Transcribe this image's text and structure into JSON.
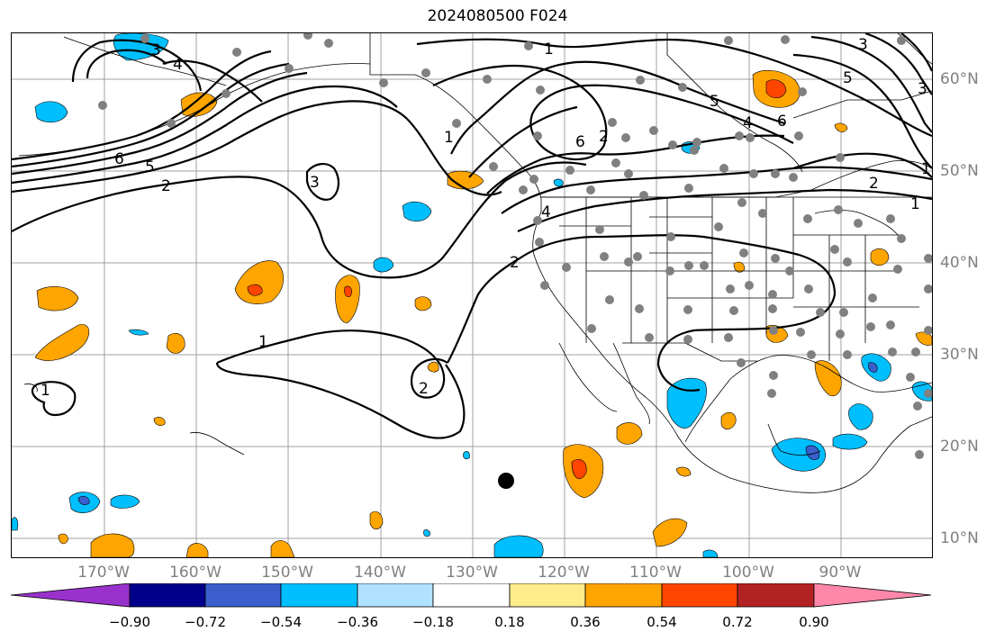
{
  "title": "2024080500 F024",
  "lon_labels": [
    "170°W",
    "160°W",
    "150°W",
    "140°W",
    "130°W",
    "120°W",
    "110°W",
    "100°W",
    "90°W"
  ],
  "lat_labels": [
    "60°N",
    "50°N",
    "40°N",
    "30°N",
    "20°N",
    "10°N"
  ],
  "colorbar": {
    "ticks": [
      "−0.90",
      "−0.72",
      "−0.54",
      "−0.36",
      "−0.18",
      "0.18",
      "0.36",
      "0.54",
      "0.72",
      "0.90"
    ],
    "colors": [
      "#9932cc",
      "#00008b",
      "#3a5fcd",
      "#00bfff",
      "#b0e2ff",
      "#ffffff",
      "#ffec8b",
      "#ffa500",
      "#ff4500",
      "#b22222",
      "#ff88aa"
    ]
  },
  "contour_labels": [
    "1",
    "2",
    "3",
    "4",
    "5",
    "6",
    "1",
    "2",
    "3",
    "4",
    "5",
    "6",
    "1",
    "2",
    "3",
    "4",
    "5",
    "6",
    "1",
    "2",
    "3",
    "1",
    "2",
    "1"
  ],
  "colors": {
    "positive_low": "#ffa500",
    "positive_mid": "#ff4500",
    "negative_low": "#00bfff",
    "negative_mid": "#3a5fcd",
    "stations": "#808080",
    "marker": "#000000"
  }
}
